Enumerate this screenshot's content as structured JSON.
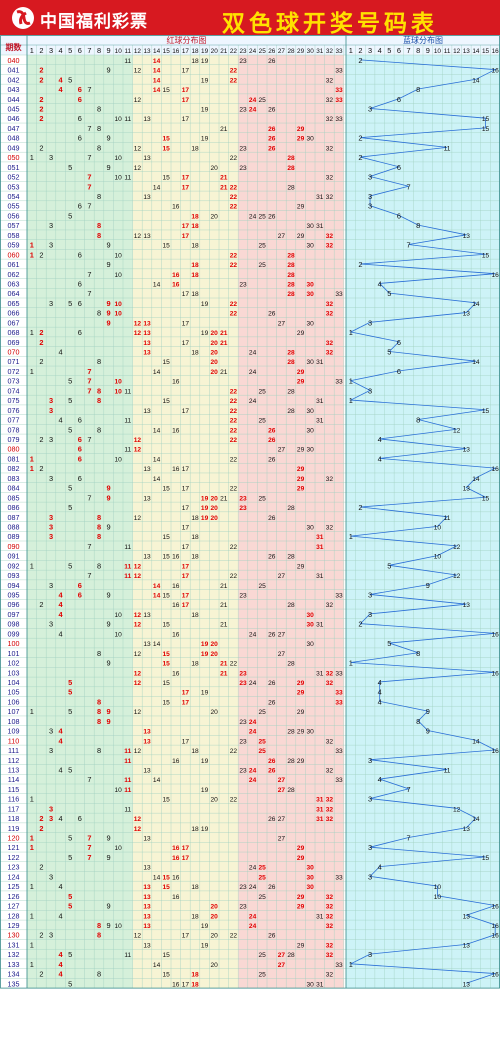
{
  "app": {
    "brand": "中国福利彩票",
    "title": "双色球开奖号码表",
    "brand_color": "#d71920",
    "title_color": "#ffe100"
  },
  "chart_data": {
    "type": "table",
    "period_header": "期数",
    "red_header": "红球分布图",
    "blue_header": "蓝球分布图",
    "red_columns": [
      "1",
      "2",
      "3",
      "4",
      "5",
      "6",
      "7",
      "8",
      "9",
      "10",
      "11",
      "12",
      "13",
      "14",
      "15",
      "16",
      "17",
      "18",
      "19",
      "20",
      "21",
      "22",
      "23",
      "24",
      "25",
      "26",
      "27",
      "28",
      "29",
      "30",
      "31",
      "32",
      "33"
    ],
    "blue_columns": [
      "1",
      "2",
      "3",
      "4",
      "5",
      "6",
      "7",
      "8",
      "9",
      "10",
      "11",
      "12",
      "13",
      "14",
      "15",
      "16"
    ],
    "zone_colors": [
      "#d5f0da",
      "#f7f4d4",
      "#f9d8d4"
    ],
    "blue_zone_color": "#cdf3f7",
    "red_number_color": "#e00000",
    "blue_line_color": "#2a6fd6",
    "draws": [
      {
        "period": "040",
        "red": [
          11,
          14,
          18,
          19,
          23,
          26
        ],
        "blue": 2
      },
      {
        "period": "041",
        "red": [
          2,
          9,
          12,
          14,
          17,
          22,
          33
        ],
        "blue": 16
      },
      {
        "period": "042",
        "red": [
          2,
          4,
          5,
          14,
          19,
          22,
          32
        ],
        "blue": 14
      },
      {
        "period": "043",
        "red": [
          4,
          6,
          7,
          14,
          15,
          17,
          33
        ],
        "blue": 8
      },
      {
        "period": "044",
        "red": [
          2,
          6,
          12,
          17,
          24,
          25,
          32,
          33
        ],
        "blue": 6
      },
      {
        "period": "045",
        "red": [
          2,
          8,
          19,
          23,
          24,
          26
        ],
        "blue": 3
      },
      {
        "period": "046",
        "red": [
          2,
          6,
          10,
          11,
          13,
          17,
          32,
          33
        ],
        "blue": 15
      },
      {
        "period": "047",
        "red": [
          7,
          8,
          21,
          26,
          29
        ],
        "blue": 15
      },
      {
        "period": "048",
        "red": [
          6,
          9,
          15,
          19,
          26,
          29,
          30
        ],
        "blue": 2
      },
      {
        "period": "049",
        "red": [
          2,
          8,
          12,
          15,
          18,
          23,
          26,
          32
        ],
        "blue": 11
      },
      {
        "period": "050",
        "red": [
          1,
          3,
          7,
          10,
          13,
          22,
          28
        ],
        "blue": 2
      },
      {
        "period": "051",
        "red": [
          5,
          9,
          12,
          20,
          23,
          28
        ],
        "blue": 6
      },
      {
        "period": "052",
        "red": [
          7,
          10,
          11,
          15,
          17,
          21,
          32
        ],
        "blue": 3
      },
      {
        "period": "053",
        "red": [
          7,
          14,
          17,
          21,
          22,
          28
        ],
        "blue": 7
      },
      {
        "period": "054",
        "red": [
          8,
          13,
          22,
          31,
          32
        ],
        "blue": 3
      },
      {
        "period": "055",
        "red": [
          6,
          7,
          16,
          22,
          29
        ],
        "blue": 3
      },
      {
        "period": "056",
        "red": [
          5,
          18,
          20,
          24,
          25,
          26
        ],
        "blue": 6
      },
      {
        "period": "057",
        "red": [
          3,
          8,
          17,
          18,
          30,
          31
        ],
        "blue": 8
      },
      {
        "period": "058",
        "red": [
          8,
          12,
          13,
          17,
          27,
          29,
          32
        ],
        "blue": 13
      },
      {
        "period": "059",
        "red": [
          1,
          3,
          9,
          15,
          18,
          25,
          30,
          32
        ],
        "blue": 7
      },
      {
        "period": "060",
        "red": [
          1,
          2,
          6,
          10,
          22,
          28
        ],
        "blue": 15
      },
      {
        "period": "061",
        "red": [
          9,
          18,
          22,
          25,
          28
        ],
        "blue": 2
      },
      {
        "period": "062",
        "red": [
          7,
          10,
          16,
          18,
          28
        ],
        "blue": 16
      },
      {
        "period": "063",
        "red": [
          6,
          14,
          16,
          23,
          28,
          30
        ],
        "blue": 4
      },
      {
        "period": "064",
        "red": [
          7,
          17,
          18,
          28,
          30,
          33
        ],
        "blue": 5
      },
      {
        "period": "065",
        "red": [
          3,
          5,
          6,
          9,
          10,
          19,
          22,
          32
        ],
        "blue": 14
      },
      {
        "period": "066",
        "red": [
          8,
          9,
          10,
          22,
          26,
          32
        ],
        "blue": 13
      },
      {
        "period": "067",
        "red": [
          9,
          12,
          13,
          17,
          27,
          30
        ],
        "blue": 3
      },
      {
        "period": "068",
        "red": [
          1,
          2,
          6,
          12,
          13,
          19,
          20,
          21,
          29
        ],
        "blue": 1
      },
      {
        "period": "069",
        "red": [
          2,
          13,
          17,
          20,
          21,
          32
        ],
        "blue": 6
      },
      {
        "period": "070",
        "red": [
          4,
          13,
          18,
          20,
          24,
          28,
          32
        ],
        "blue": 5
      },
      {
        "period": "071",
        "red": [
          2,
          8,
          15,
          20,
          28,
          30,
          31
        ],
        "blue": 14
      },
      {
        "period": "072",
        "red": [
          1,
          7,
          14,
          20,
          21,
          24,
          29
        ],
        "blue": 6
      },
      {
        "period": "073",
        "red": [
          5,
          7,
          10,
          16,
          29,
          33
        ],
        "blue": 1
      },
      {
        "period": "074",
        "red": [
          7,
          8,
          10,
          11,
          22,
          25,
          28
        ],
        "blue": 3
      },
      {
        "period": "075",
        "red": [
          3,
          5,
          8,
          15,
          22,
          24,
          31
        ],
        "blue": 1
      },
      {
        "period": "076",
        "red": [
          3,
          13,
          17,
          22,
          28,
          30
        ],
        "blue": 15
      },
      {
        "period": "077",
        "red": [
          4,
          6,
          11,
          22,
          25,
          31
        ],
        "blue": 8
      },
      {
        "period": "078",
        "red": [
          5,
          8,
          14,
          16,
          22,
          26,
          30
        ],
        "blue": 12
      },
      {
        "period": "079",
        "red": [
          2,
          3,
          6,
          7,
          12,
          22,
          26
        ],
        "blue": 4
      },
      {
        "period": "080",
        "red": [
          6,
          11,
          12,
          27,
          29,
          30
        ],
        "blue": 13
      },
      {
        "period": "081",
        "red": [
          1,
          6,
          10,
          14,
          22,
          26
        ],
        "blue": 4
      },
      {
        "period": "082",
        "red": [
          1,
          2,
          13,
          16,
          17,
          29
        ],
        "blue": 16
      },
      {
        "period": "083",
        "red": [
          3,
          6,
          14,
          29,
          32
        ],
        "blue": 14
      },
      {
        "period": "084",
        "red": [
          5,
          9,
          15,
          17,
          22,
          29
        ],
        "blue": 13
      },
      {
        "period": "085",
        "red": [
          7,
          9,
          13,
          19,
          20,
          21,
          23,
          25
        ],
        "blue": 15
      },
      {
        "period": "086",
        "red": [
          5,
          17,
          19,
          20,
          23,
          28
        ],
        "blue": 2
      },
      {
        "period": "087",
        "red": [
          3,
          8,
          12,
          18,
          19,
          20,
          26
        ],
        "blue": 11
      },
      {
        "period": "088",
        "red": [
          3,
          8,
          9,
          17,
          30,
          32
        ],
        "blue": 10
      },
      {
        "period": "089",
        "red": [
          3,
          8,
          15,
          18,
          31
        ],
        "blue": 1
      },
      {
        "period": "090",
        "red": [
          7,
          11,
          17,
          22,
          31
        ],
        "blue": 12
      },
      {
        "period": "091",
        "red": [
          13,
          15,
          16,
          18,
          26,
          28
        ],
        "blue": 10
      },
      {
        "period": "092",
        "red": [
          1,
          5,
          8,
          11,
          12,
          17,
          29
        ],
        "blue": 5
      },
      {
        "period": "093",
        "red": [
          7,
          11,
          12,
          17,
          22,
          27,
          31
        ],
        "blue": 12
      },
      {
        "period": "094",
        "red": [
          3,
          6,
          14,
          16,
          21,
          25
        ],
        "blue": 9
      },
      {
        "period": "095",
        "red": [
          4,
          6,
          9,
          14,
          15,
          17,
          23,
          33
        ],
        "blue": 3
      },
      {
        "period": "096",
        "red": [
          2,
          4,
          16,
          17,
          21,
          28,
          32
        ],
        "blue": 13
      },
      {
        "period": "097",
        "red": [
          4,
          10,
          12,
          13,
          18,
          30
        ],
        "blue": 3
      },
      {
        "period": "098",
        "red": [
          3,
          9,
          12,
          15,
          21,
          30,
          31
        ],
        "blue": 2
      },
      {
        "period": "099",
        "red": [
          4,
          10,
          16,
          24,
          26,
          27
        ],
        "blue": 16
      },
      {
        "period": "100",
        "red": [
          13,
          14,
          19,
          20,
          30
        ],
        "blue": 5
      },
      {
        "period": "101",
        "red": [
          8,
          12,
          15,
          19,
          20,
          27
        ],
        "blue": 8
      },
      {
        "period": "102",
        "red": [
          9,
          15,
          18,
          21,
          22,
          28
        ],
        "blue": 1
      },
      {
        "period": "103",
        "red": [
          12,
          16,
          21,
          23,
          31,
          32,
          33
        ],
        "blue": 16
      },
      {
        "period": "104",
        "red": [
          5,
          12,
          15,
          23,
          24,
          26,
          29,
          32
        ],
        "blue": 4
      },
      {
        "period": "105",
        "red": [
          5,
          17,
          19,
          29,
          33
        ],
        "blue": 4
      },
      {
        "period": "106",
        "red": [
          8,
          15,
          17,
          26,
          33
        ],
        "blue": 4
      },
      {
        "period": "107",
        "red": [
          1,
          5,
          8,
          9,
          12,
          20,
          25,
          29
        ],
        "blue": 9
      },
      {
        "period": "108",
        "red": [
          8,
          9,
          23,
          24
        ],
        "blue": 8
      },
      {
        "period": "109",
        "red": [
          3,
          4,
          13,
          24,
          28,
          29,
          30
        ],
        "blue": 9
      },
      {
        "period": "110",
        "red": [
          4,
          13,
          17,
          23,
          25,
          32
        ],
        "blue": 14
      },
      {
        "period": "111",
        "red": [
          3,
          8,
          11,
          12,
          18,
          22,
          25,
          33
        ],
        "blue": 16
      },
      {
        "period": "112",
        "red": [
          11,
          16,
          19,
          26,
          28,
          29
        ],
        "blue": 3
      },
      {
        "period": "113",
        "red": [
          4,
          5,
          13,
          23,
          24,
          26,
          32
        ],
        "blue": 11
      },
      {
        "period": "114",
        "red": [
          7,
          11,
          14,
          24,
          27,
          33
        ],
        "blue": 4
      },
      {
        "period": "115",
        "red": [
          10,
          11,
          19,
          27,
          28
        ],
        "blue": 7
      },
      {
        "period": "116",
        "red": [
          1,
          15,
          20,
          22,
          31,
          32
        ],
        "blue": 3
      },
      {
        "period": "117",
        "red": [
          3,
          11,
          31,
          32
        ],
        "blue": 12
      },
      {
        "period": "118",
        "red": [
          2,
          3,
          4,
          6,
          12,
          26,
          27,
          31,
          32
        ],
        "blue": 14
      },
      {
        "period": "119",
        "red": [
          2,
          12,
          18,
          19
        ],
        "blue": 13
      },
      {
        "period": "120",
        "red": [
          1,
          5,
          7,
          9,
          13,
          27
        ],
        "blue": 7
      },
      {
        "period": "121",
        "red": [
          1,
          7,
          10,
          16,
          17,
          29
        ],
        "blue": 3
      },
      {
        "period": "122",
        "red": [
          5,
          7,
          9,
          16,
          17,
          29
        ],
        "blue": 15
      },
      {
        "period": "123",
        "red": [
          2,
          13,
          24,
          25,
          30
        ],
        "blue": 4
      },
      {
        "period": "124",
        "red": [
          3,
          14,
          15,
          16,
          25,
          30,
          33
        ],
        "blue": 3
      },
      {
        "period": "125",
        "red": [
          1,
          4,
          13,
          15,
          18,
          23,
          24,
          26,
          30
        ],
        "blue": 10
      },
      {
        "period": "126",
        "red": [
          5,
          13,
          16,
          25,
          29,
          32
        ],
        "blue": 10
      },
      {
        "period": "127",
        "red": [
          5,
          9,
          13,
          20,
          23,
          29,
          32
        ],
        "blue": 16
      },
      {
        "period": "128",
        "red": [
          1,
          4,
          13,
          18,
          20,
          24,
          31,
          32
        ],
        "blue": 13
      },
      {
        "period": "129",
        "red": [
          8,
          9,
          10,
          13,
          19,
          24,
          32
        ],
        "blue": 16
      },
      {
        "period": "130",
        "red": [
          2,
          3,
          8,
          12,
          17,
          20,
          22,
          26
        ],
        "blue": 16
      },
      {
        "period": "131",
        "red": [
          1,
          13,
          19,
          29,
          32
        ],
        "blue": 13
      },
      {
        "period": "132",
        "red": [
          4,
          5,
          11,
          15,
          25,
          27,
          28,
          32
        ],
        "blue": 3
      },
      {
        "period": "133",
        "red": [
          1,
          4,
          14,
          20,
          27,
          33
        ],
        "blue": 1
      },
      {
        "period": "134",
        "red": [
          2,
          4,
          8,
          15,
          18,
          25,
          32
        ],
        "blue": 16
      },
      {
        "period": "135",
        "red": [
          5,
          16,
          17,
          18,
          30,
          31
        ],
        "blue": 13
      }
    ]
  }
}
